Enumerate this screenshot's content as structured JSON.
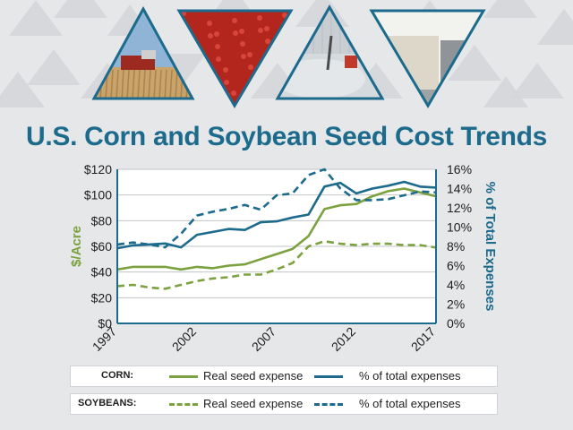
{
  "header_photos": [
    {
      "name": "corn-harvest-photo",
      "sky": "#8fb4d6",
      "ground": "#c9a36a",
      "accent": "#9c2a20"
    },
    {
      "name": "red-seed-photo",
      "sky": "#b3261e",
      "ground": "#8f1d16",
      "accent": "#d8453a"
    },
    {
      "name": "seed-tank-photo",
      "sky": "#d5dadf",
      "ground": "#aeb5bc",
      "accent": "#c0392b"
    },
    {
      "name": "seed-bags-photo",
      "sky": "#f2f2ee",
      "ground": "#9ea3a5",
      "accent": "#dcd7c8"
    }
  ],
  "title": "U.S. Corn and Soybean Seed Cost Trends",
  "chart_data": {
    "type": "line",
    "title": "U.S. Corn and Soybean Seed Cost Trends",
    "x": [
      1997,
      1998,
      1999,
      2000,
      2001,
      2002,
      2003,
      2004,
      2005,
      2006,
      2007,
      2008,
      2009,
      2010,
      2011,
      2012,
      2013,
      2014,
      2015,
      2016,
      2017
    ],
    "xticks": [
      "1997",
      "2002",
      "2007",
      "2012",
      "2017"
    ],
    "xtick_values": [
      1997,
      2002,
      2007,
      2012,
      2017
    ],
    "xlim": [
      1997,
      2017
    ],
    "ylabel_left": "$/Acre",
    "ylabel_right": "% of Total Expenses",
    "yticks_left": [
      "$0",
      "$20",
      "$40",
      "$60",
      "$80",
      "$100",
      "$120"
    ],
    "ytick_values_left": [
      0,
      20,
      40,
      60,
      80,
      100,
      120
    ],
    "ylim_left": [
      0,
      120
    ],
    "yticks_right": [
      "0%",
      "2%",
      "4%",
      "6%",
      "8%",
      "10%",
      "12%",
      "14%",
      "16%"
    ],
    "ytick_values_right": [
      0,
      2,
      4,
      6,
      8,
      10,
      12,
      14,
      16
    ],
    "ylim_right": [
      0,
      16
    ],
    "grid": "horizontal",
    "series": [
      {
        "name": "Real seed expense",
        "group": "CORN",
        "axis": "left",
        "style": "solid",
        "color": "#7ba23f",
        "values": [
          42,
          44,
          44,
          44,
          42,
          44,
          43,
          45,
          46,
          50,
          54,
          58,
          68,
          89,
          92,
          93,
          99,
          103,
          105,
          102,
          99
        ]
      },
      {
        "name": "% of total expenses",
        "group": "CORN",
        "axis": "right",
        "style": "solid",
        "color": "#1c6a8c",
        "values": [
          7.8,
          8.1,
          8.2,
          8.3,
          7.9,
          9.2,
          9.5,
          9.8,
          9.7,
          10.5,
          10.6,
          11.0,
          11.3,
          14.2,
          14.6,
          13.5,
          14.0,
          14.3,
          14.7,
          14.2,
          14.1
        ]
      },
      {
        "name": "Real seed expense",
        "group": "SOYBEANS",
        "axis": "left",
        "style": "dashed",
        "color": "#7ba23f",
        "values": [
          29,
          30,
          28,
          27,
          30,
          33,
          35,
          36,
          38,
          38,
          42,
          47,
          60,
          64,
          62,
          61,
          62,
          62,
          61,
          61,
          59
        ]
      },
      {
        "name": "% of total expenses",
        "group": "SOYBEANS",
        "axis": "right",
        "style": "dashed",
        "color": "#1c6a8c",
        "values": [
          8.2,
          8.4,
          8.2,
          7.9,
          9.3,
          11.2,
          11.6,
          11.9,
          12.3,
          11.8,
          13.3,
          13.5,
          15.4,
          16.0,
          14.0,
          12.8,
          12.8,
          12.9,
          13.3,
          13.7,
          13.6
        ]
      }
    ]
  },
  "legend": {
    "rows": [
      {
        "group": "CORN:",
        "style": "solid",
        "items": [
          {
            "label": "Real seed expense",
            "color": "#7ba23f"
          },
          {
            "label": "% of total expenses",
            "color": "#1c6a8c"
          }
        ]
      },
      {
        "group": "SOYBEANS:",
        "style": "dashed",
        "items": [
          {
            "label": "Real seed expense",
            "color": "#7ba23f"
          },
          {
            "label": "% of total expenses",
            "color": "#1c6a8c"
          }
        ]
      }
    ]
  },
  "colors": {
    "background": "#e6e7e9",
    "triangle_pattern": "#d4d6d9",
    "title": "#1c6a8c",
    "corn_green": "#7ba23f",
    "teal": "#1c6a8c",
    "frame": "#1c6a8c"
  }
}
